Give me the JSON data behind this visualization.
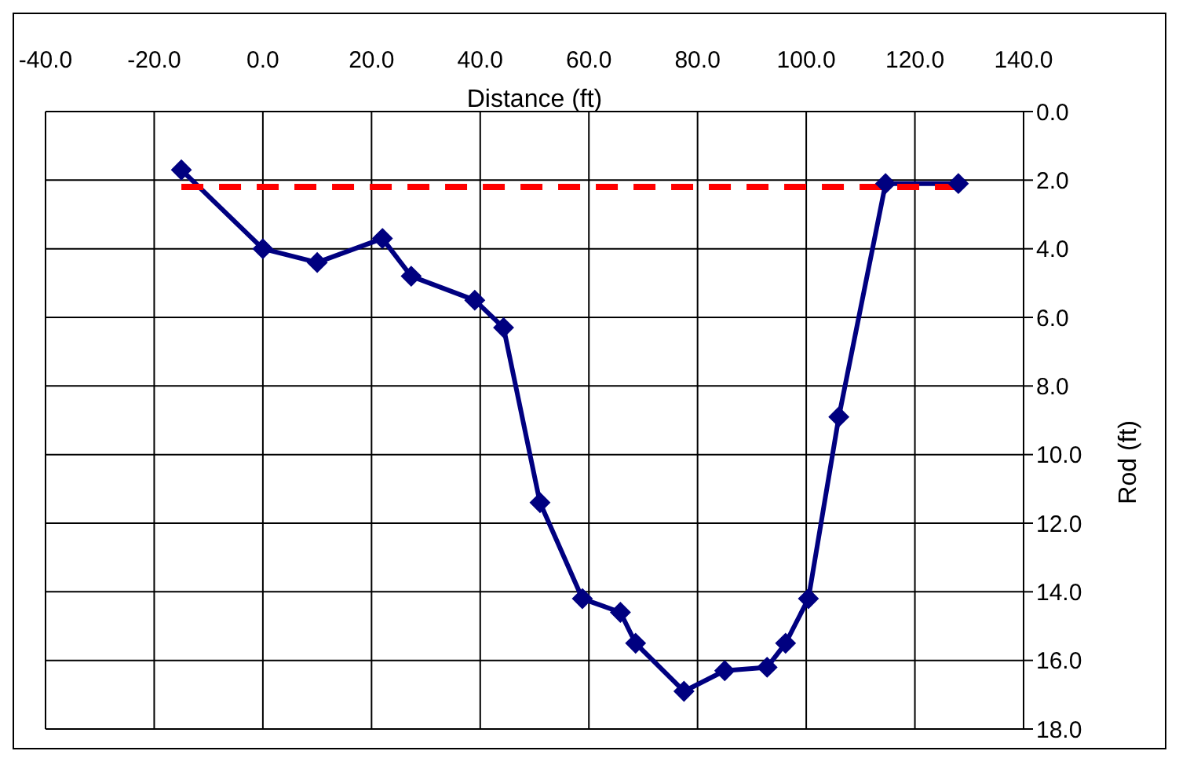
{
  "chart_data": {
    "type": "line",
    "xlabel": "Distance (ft)",
    "ylabel": "Rod (ft)",
    "xlim": [
      -40,
      140
    ],
    "xticks": [
      {
        "value": -40,
        "label": "-40.0"
      },
      {
        "value": -20,
        "label": "-20.0"
      },
      {
        "value": 0,
        "label": "0.0"
      },
      {
        "value": 20,
        "label": "20.0"
      },
      {
        "value": 40,
        "label": "40.0"
      },
      {
        "value": 60,
        "label": "60.0"
      },
      {
        "value": 80,
        "label": "80.0"
      },
      {
        "value": 100,
        "label": "100.0"
      },
      {
        "value": 120,
        "label": "120.0"
      },
      {
        "value": 140,
        "label": "140.0"
      }
    ],
    "ylim": [
      18,
      0
    ],
    "yticks": [
      {
        "value": 0,
        "label": "0.0"
      },
      {
        "value": 2,
        "label": "2.0"
      },
      {
        "value": 4,
        "label": "4.0"
      },
      {
        "value": 6,
        "label": "6.0"
      },
      {
        "value": 8,
        "label": "8.0"
      },
      {
        "value": 10,
        "label": "10.0"
      },
      {
        "value": 12,
        "label": "12.0"
      },
      {
        "value": 14,
        "label": "14.0"
      },
      {
        "value": 16,
        "label": "16.0"
      },
      {
        "value": 18,
        "label": "18.0"
      }
    ],
    "grid": true,
    "series": [
      {
        "color": "#000080",
        "marker": "diamond",
        "line_style": "solid",
        "x": [
          -15,
          0,
          10,
          22,
          27.3,
          39,
          44.3,
          51,
          58.8,
          65.8,
          68.6,
          77.5,
          85,
          92.8,
          96.2,
          100.4,
          106,
          114.6,
          128
        ],
        "values": [
          1.7,
          4.0,
          4.4,
          3.7,
          4.8,
          5.5,
          6.3,
          11.4,
          14.2,
          14.6,
          15.5,
          16.9,
          16.3,
          16.2,
          15.5,
          14.2,
          8.9,
          2.1,
          2.1
        ]
      },
      {
        "color": "#ff0000",
        "marker": "none",
        "line_style": "dashed",
        "x": [
          -15,
          128
        ],
        "values": [
          2.2,
          2.2
        ]
      }
    ]
  }
}
